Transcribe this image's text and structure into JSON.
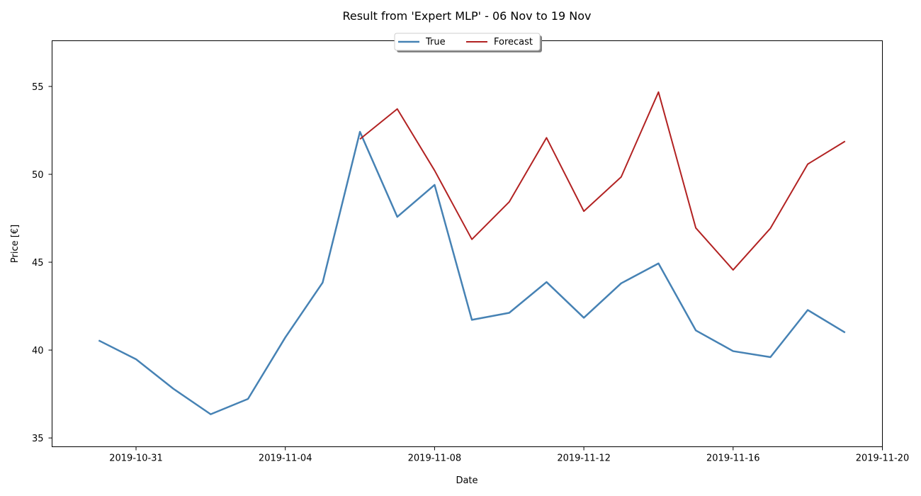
{
  "chart_data": {
    "type": "line",
    "title": "Result from 'Expert MLP' - 06 Nov to 19 Nov",
    "xlabel": "Date",
    "ylabel": "Price [€]",
    "xlim": [
      "2019-10-28T18:00",
      "2019-11-20"
    ],
    "ylim": [
      34.5,
      57.6
    ],
    "x_ticks": [
      "2019-10-31",
      "2019-11-04",
      "2019-11-08",
      "2019-11-12",
      "2019-11-16",
      "2019-11-20"
    ],
    "y_ticks": [
      35,
      40,
      45,
      50,
      55
    ],
    "grid": false,
    "legend_position": "top-center",
    "series": [
      {
        "name": "True",
        "color": "#4682b4",
        "x": [
          "2019-10-30",
          "2019-10-31",
          "2019-11-01",
          "2019-11-02",
          "2019-11-03",
          "2019-11-04",
          "2019-11-05",
          "2019-11-06",
          "2019-11-07",
          "2019-11-08",
          "2019-11-09",
          "2019-11-10",
          "2019-11-11",
          "2019-11-12",
          "2019-11-13",
          "2019-11-14",
          "2019-11-15",
          "2019-11-16",
          "2019-11-17",
          "2019-11-18",
          "2019-11-19"
        ],
        "values": [
          40.55,
          39.48,
          37.8,
          36.35,
          37.22,
          40.72,
          43.84,
          52.42,
          47.58,
          49.4,
          41.72,
          42.12,
          43.87,
          41.84,
          43.8,
          44.93,
          41.12,
          39.94,
          39.6,
          42.28,
          41.0
        ]
      },
      {
        "name": "Forecast",
        "color": "#b22222",
        "x": [
          "2019-11-06",
          "2019-11-07",
          "2019-11-08",
          "2019-11-09",
          "2019-11-10",
          "2019-11-11",
          "2019-11-12",
          "2019-11-13",
          "2019-11-14",
          "2019-11-15",
          "2019-11-16",
          "2019-11-17",
          "2019-11-18",
          "2019-11-19"
        ],
        "values": [
          52.0,
          53.72,
          50.22,
          46.3,
          48.43,
          52.08,
          47.9,
          49.85,
          54.68,
          46.95,
          44.56,
          46.93,
          50.58,
          51.88
        ]
      }
    ]
  }
}
